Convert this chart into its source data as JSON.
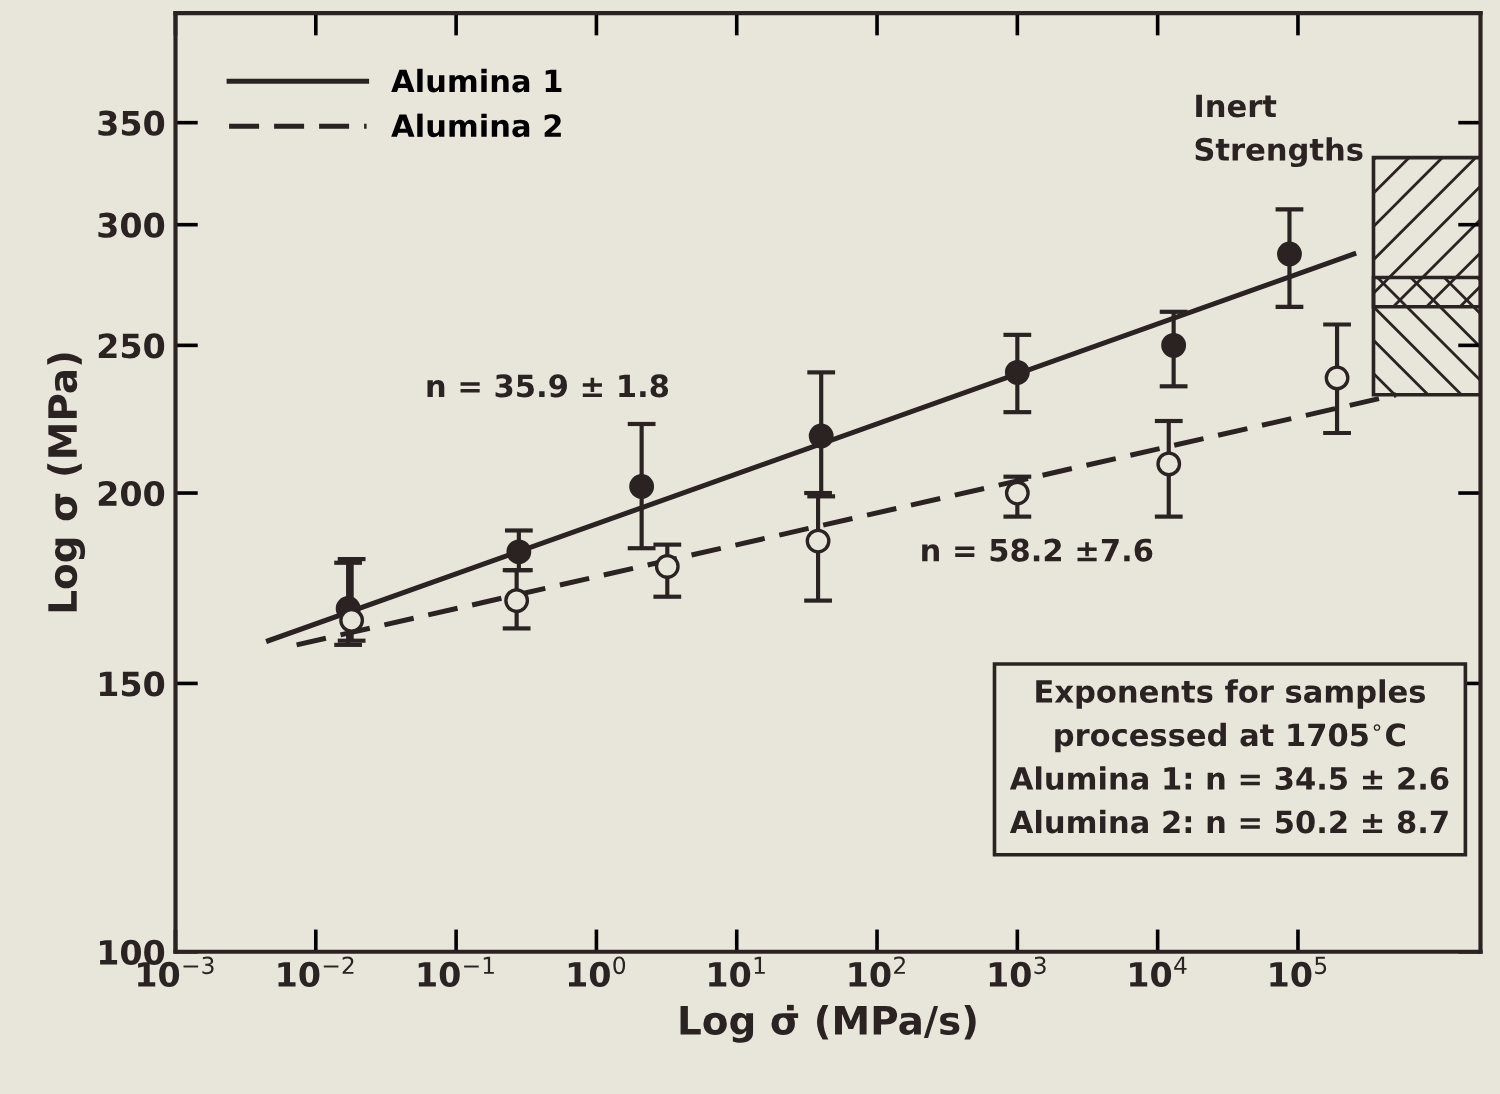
{
  "chart_data": {
    "type": "scatter",
    "xlabel": "Log σ̇ (MPa/s)",
    "ylabel": "Log σ (MPa)",
    "log": "xy",
    "xlim": [
      0.001,
      2000000
    ],
    "ylim": [
      100,
      413
    ],
    "xticks": [
      {
        "value": 0.001,
        "label": "10$^{−3}$"
      },
      {
        "value": 0.01,
        "label": "10$^{−2}$"
      },
      {
        "value": 0.1,
        "label": "10$^{−1}$"
      },
      {
        "value": 1,
        "label": "10$^{0}$"
      },
      {
        "value": 10,
        "label": "10$^{1}$"
      },
      {
        "value": 100,
        "label": "10$^{2}$"
      },
      {
        "value": 1000,
        "label": "10$^{3}$"
      },
      {
        "value": 10000,
        "label": "10$^{4}$"
      },
      {
        "value": 100000,
        "label": "10$^{5}$"
      }
    ],
    "yticks": [
      100,
      150,
      200,
      250,
      300,
      350
    ],
    "grid": false,
    "legend": "top left",
    "marker": "circle",
    "series": [
      {
        "type": "line",
        "name": "Alumina 1",
        "color": "#2a2322",
        "line_style": "solid",
        "marker": "none",
        "x": [
          0.0046,
          250000
        ],
        "values": [
          160,
          287
        ]
      },
      {
        "type": "line",
        "name": "Alumina 2",
        "color": "#2a2322",
        "line_style": "dashed",
        "marker": "none",
        "x": [
          0.0073,
          500000
        ],
        "values": [
          159,
          232
        ]
      },
      {
        "color": "#2a2322",
        "x": [
          0.017,
          0.28,
          2.1,
          40,
          1000,
          13000,
          87000
        ],
        "values": [
          168,
          183,
          202,
          218,
          240,
          250,
          287
        ],
        "errors": [
          [
            159,
            180
          ],
          [
            178,
            189
          ],
          [
            184,
            222
          ],
          [
            199,
            240
          ],
          [
            226,
            254
          ],
          [
            235,
            263
          ],
          [
            265,
            307
          ]
        ]
      },
      {
        "color": "#2a2322",
        "x": [
          0.018,
          0.27,
          3.2,
          38,
          1000,
          12000,
          190000
        ],
        "values": [
          165,
          170,
          179,
          186,
          200,
          209,
          238
        ],
        "errors": [
          [
            160,
            181
          ],
          [
            163,
            178
          ],
          [
            171,
            185
          ],
          [
            170,
            200
          ],
          [
            193,
            205
          ],
          [
            193,
            223
          ],
          [
            219,
            258
          ]
        ]
      }
    ],
    "bands": [
      {
        "axis": "y",
        "from": 265,
        "to": 332,
        "color": "#2a2322"
      },
      {
        "axis": "y",
        "from": 232,
        "to": 277,
        "color": "#2a2322"
      }
    ],
    "annotations": [
      "n = 35.9 ± 1.8",
      "n = 58.2 ±7.6",
      "Inert\nStrengths",
      "Exponents for samples\nprocessed at 1705$^{∘}$C\nAlumina 1: n = 34.5 ± 2.6\nAlumina 2: n = 50.2 ± 8.7"
    ]
  }
}
